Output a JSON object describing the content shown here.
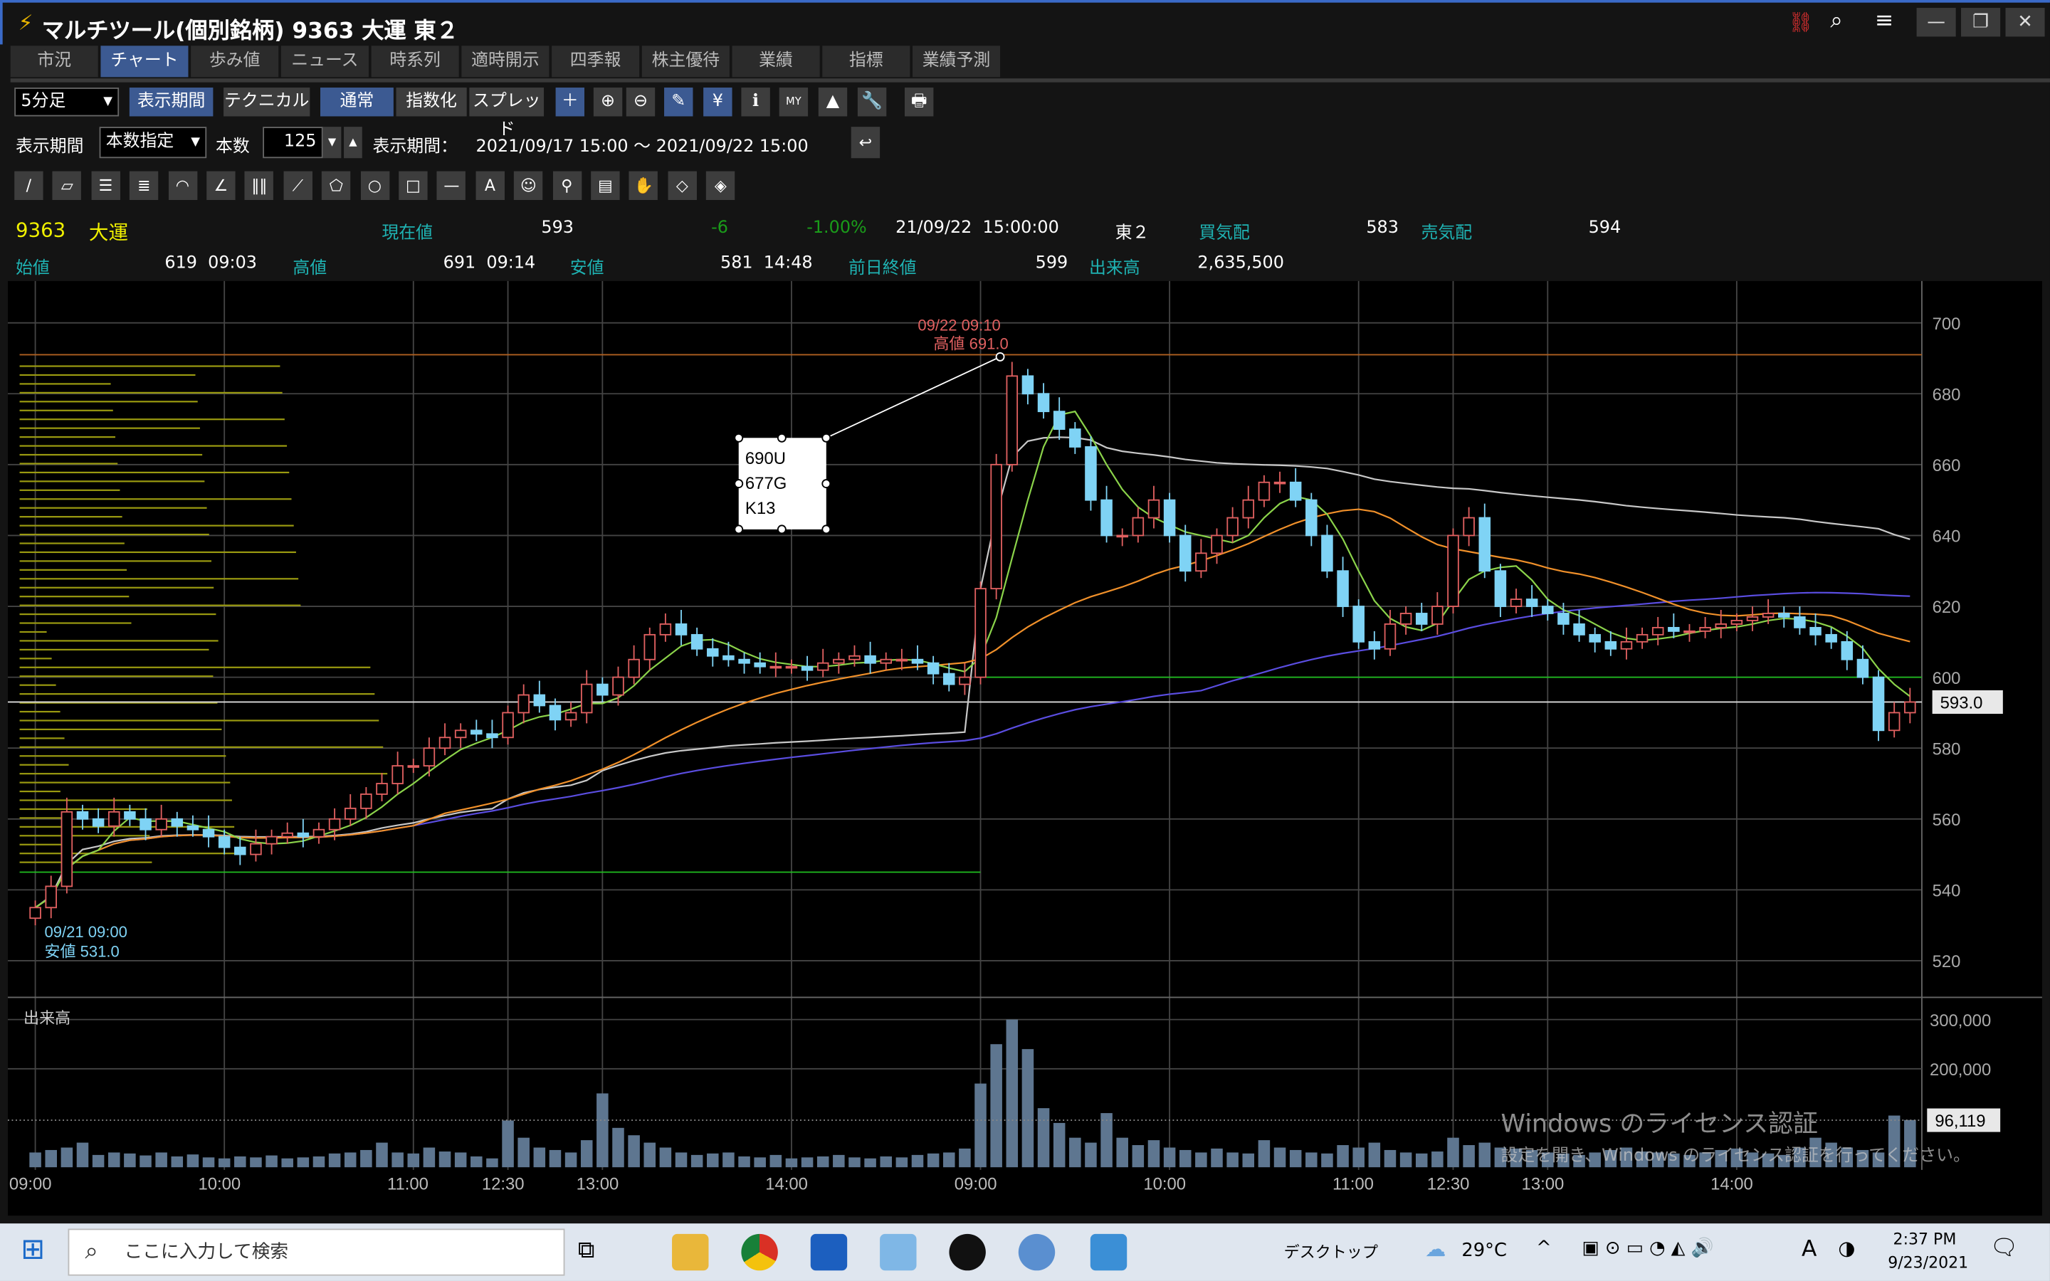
{
  "window": {
    "title": "マルチツール(個別銘柄) 9363 大運 東２",
    "controls": [
      "—",
      "❐",
      "✕"
    ],
    "header_icons": [
      "link-icon",
      "search-icon",
      "menu-icon"
    ]
  },
  "tabs": [
    "市況",
    "チャート",
    "歩み値",
    "ニュース",
    "時系列",
    "適時開示",
    "四季報",
    "株主優待",
    "業績",
    "指標",
    "業績予測"
  ],
  "active_tab": 1,
  "toolbar": {
    "interval": "5分足",
    "buttons": [
      "表示期間",
      "テクニカル",
      "通常",
      "指数化",
      "スプレッド"
    ],
    "icons": [
      "＋",
      "⊕",
      "⊖",
      "✎",
      "¥",
      "ℹ",
      "MY",
      "▲",
      "🔧",
      "🖶"
    ]
  },
  "period": {
    "label": "表示期間",
    "mode": "本数指定",
    "count_label": "本数",
    "count": "125",
    "range_label": "表示期間：",
    "range": "2021/09/17 15:00 ～ 2021/09/22 15:00"
  },
  "draw_tools": [
    "/",
    "▱",
    "☰",
    "≣",
    "◠",
    "∠",
    "‖‖",
    "⟋",
    "⬠",
    "○",
    "□",
    "—",
    "A",
    "☺",
    "⚲",
    "▤",
    "✋",
    "◇",
    "◈"
  ],
  "quote": {
    "code": "9363",
    "name": "大運",
    "current_label": "現在値",
    "current": "593",
    "change": "-6",
    "change_pct": "-1.00%",
    "datetime": "21/09/22  15:00:00",
    "market": "東２",
    "bid_label": "買気配",
    "bid": "583",
    "ask_label": "売気配",
    "ask": "594",
    "open_label": "始値",
    "open": "619  09:03",
    "high_label": "高値",
    "high": "691  09:14",
    "low_label": "安値",
    "low": "581  14:48",
    "prev_label": "前日終値",
    "prev": "599",
    "volume_label": "出来高",
    "volume": "2,635,500"
  },
  "chart_data": {
    "type": "candlestick",
    "y_ticks": [
      "700",
      "680",
      "660",
      "640",
      "620",
      "600",
      "580",
      "560",
      "540",
      "520"
    ],
    "ylim": [
      520,
      700
    ],
    "x_ticks": [
      {
        "label": "09:00",
        "index": 0
      },
      {
        "label": "10:00",
        "index": 12
      },
      {
        "label": "11:00",
        "index": 24
      },
      {
        "label": "12:30",
        "index": 30
      },
      {
        "label": "13:00",
        "index": 36
      },
      {
        "label": "14:00",
        "index": 48
      },
      {
        "label": "09:00",
        "index": 60
      },
      {
        "label": "10:00",
        "index": 72
      },
      {
        "label": "11:00",
        "index": 84
      },
      {
        "label": "12:30",
        "index": 90
      },
      {
        "label": "13:00",
        "index": 96
      },
      {
        "label": "14:00",
        "index": 108
      }
    ],
    "close": [
      535,
      541,
      562,
      560,
      558,
      562,
      560,
      557,
      560,
      558,
      557,
      555,
      552,
      550,
      553,
      555,
      556,
      555,
      557,
      560,
      563,
      567,
      570,
      575,
      575,
      580,
      583,
      585,
      584,
      583,
      590,
      595,
      592,
      588,
      590,
      598,
      595,
      600,
      605,
      612,
      615,
      612,
      608,
      606,
      605,
      604,
      603,
      603,
      603,
      602,
      604,
      605,
      606,
      604,
      605,
      605,
      604,
      601,
      598,
      600,
      625,
      660,
      685,
      680,
      675,
      670,
      665,
      650,
      640,
      640,
      645,
      650,
      640,
      630,
      635,
      640,
      645,
      650,
      655,
      655,
      650,
      640,
      630,
      620,
      610,
      608,
      615,
      618,
      615,
      620,
      640,
      645,
      630,
      620,
      622,
      620,
      618,
      615,
      612,
      610,
      608,
      610,
      612,
      614,
      613,
      613,
      614,
      615,
      616,
      617,
      618,
      617,
      614,
      612,
      610,
      605,
      600,
      585,
      590,
      593
    ],
    "volume_k": [
      30,
      35,
      40,
      50,
      25,
      30,
      28,
      24,
      30,
      22,
      26,
      20,
      18,
      22,
      20,
      24,
      18,
      20,
      22,
      28,
      30,
      35,
      50,
      30,
      28,
      40,
      32,
      30,
      22,
      18,
      95,
      60,
      40,
      35,
      30,
      55,
      150,
      80,
      65,
      50,
      40,
      30,
      25,
      28,
      30,
      22,
      20,
      25,
      18,
      20,
      22,
      25,
      20,
      18,
      22,
      20,
      25,
      28,
      30,
      38,
      170,
      250,
      300,
      240,
      120,
      90,
      60,
      50,
      110,
      60,
      45,
      55,
      40,
      35,
      30,
      38,
      30,
      28,
      55,
      40,
      35,
      30,
      28,
      45,
      40,
      50,
      35,
      30,
      28,
      32,
      60,
      45,
      50,
      40,
      38,
      35,
      30,
      28,
      25,
      30,
      35,
      40,
      32,
      30,
      28,
      25,
      30,
      35,
      38,
      30,
      28,
      25,
      40,
      60,
      50,
      40,
      35,
      30,
      105,
      96
    ],
    "vol_ticks": [
      "300,000",
      "200,000"
    ],
    "hlines": {
      "high": 691,
      "support": 600,
      "low_support": 545,
      "current": 593
    },
    "current_label": "593.0",
    "volume_last": "96,119",
    "volume_title": "出来高",
    "high_annot": [
      "09/22 09:10",
      "高値 691.0"
    ],
    "low_annot": [
      "09/21 09:00",
      "安値 531.0"
    ],
    "note": [
      "690U",
      "677G",
      "K13"
    ],
    "colors": {
      "up": "#e06060",
      "down": "#7fd3f5",
      "ma_short": "#8bd34a",
      "ma_mid": "#f0902a",
      "ma_long": "#5a4de0",
      "vwap": "#c8c8c8"
    }
  },
  "watermark": [
    "Windows のライセンス認証",
    "設定を開き、Windows のライセンス認証を行ってください。"
  ],
  "taskbar": {
    "search_placeholder": "ここに入力して検索",
    "desktop": "デスクトップ",
    "weather": "29°C",
    "ime": "A",
    "time": "2:37 PM",
    "date": "9/23/2021"
  }
}
